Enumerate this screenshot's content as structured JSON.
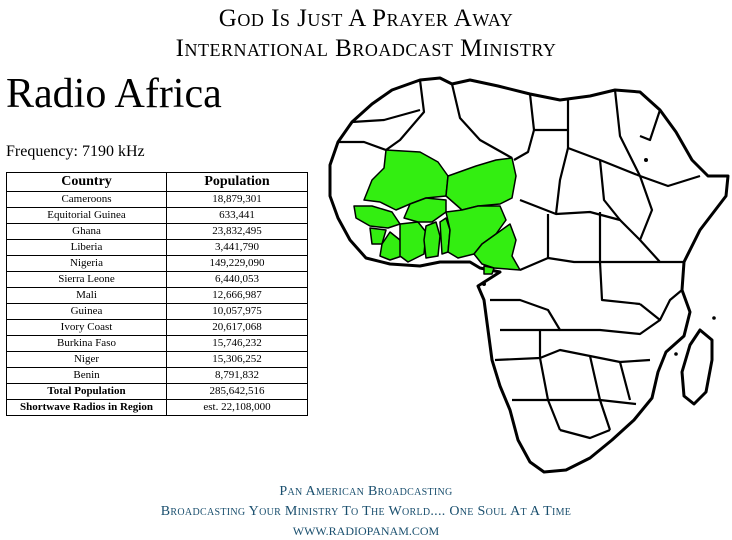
{
  "header": {
    "line1": "God Is Just A Prayer Away",
    "line2": "International Broadcast Ministry"
  },
  "title": "Radio Africa",
  "frequency": "Frequency: 7190 kHz",
  "table": {
    "headers": [
      "Country",
      "Population"
    ],
    "rows": [
      {
        "country": "Cameroons",
        "population": "18,879,301"
      },
      {
        "country": "Equitorial Guinea",
        "population": "633,441"
      },
      {
        "country": "Ghana",
        "population": "23,832,495"
      },
      {
        "country": "Liberia",
        "population": "3,441,790"
      },
      {
        "country": "Nigeria",
        "population": "149,229,090"
      },
      {
        "country": "Sierra Leone",
        "population": "6,440,053"
      },
      {
        "country": "Mali",
        "population": "12,666,987"
      },
      {
        "country": "Guinea",
        "population": "10,057,975"
      },
      {
        "country": "Ivory Coast",
        "population": "20,617,068"
      },
      {
        "country": "Burkina Faso",
        "population": "15,746,232"
      },
      {
        "country": "Niger",
        "population": "15,306,252"
      },
      {
        "country": "Benin",
        "population": "8,791,832"
      }
    ],
    "total_label": "Total Population",
    "total_value": "285,642,516",
    "radios_label": "Shortwave Radios in Region",
    "radios_value": "est. 22,108,000"
  },
  "map": {
    "highlight_color": "#33ee11",
    "outline_color": "#000000"
  },
  "footer": {
    "line1": "Pan American Broadcasting",
    "line2": "Broadcasting Your Ministry To The World.... One Soul At A Time",
    "line3": "WWW.RADIOPANAM.COM"
  }
}
